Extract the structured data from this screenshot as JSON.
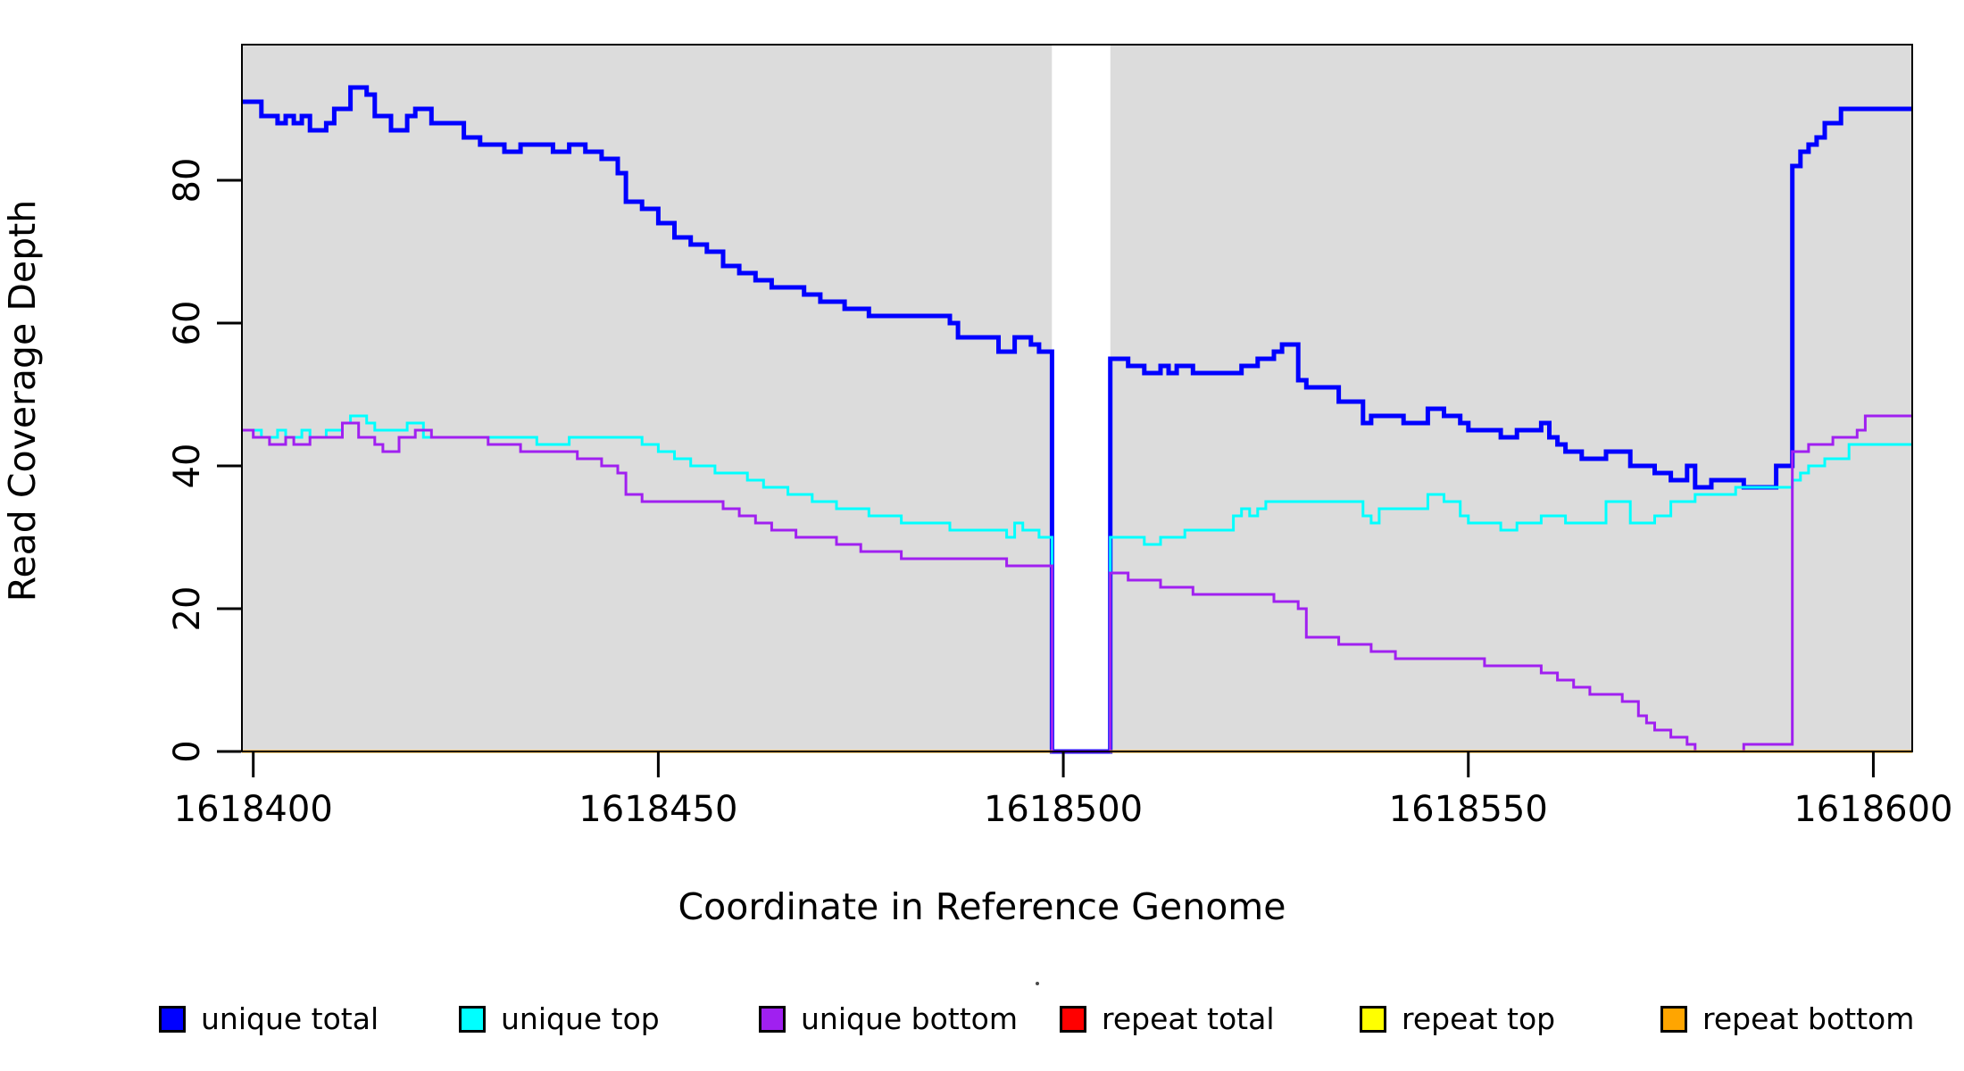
{
  "chart_data": {
    "type": "line",
    "subtype": "step-post-coverage-plot",
    "title": "",
    "xlabel": "Coordinate in Reference Genome",
    "ylabel": "Read Coverage Depth",
    "x_ticks": [
      1618400,
      1618450,
      1618500,
      1618550,
      1618600
    ],
    "y_ticks": [
      0,
      20,
      40,
      60,
      80
    ],
    "xlim": [
      1618398.6,
      1618604.8
    ],
    "ylim": [
      0,
      99
    ],
    "grid": "off",
    "panel_background": "#DCDCDC",
    "gap_region": {
      "x_start": 1618498.6,
      "x_end": 1618505.8,
      "fill": "#FFFFFF"
    },
    "legend_position": "bottom",
    "series": [
      {
        "name": "unique total",
        "color": "#0000FF",
        "line_width": 5,
        "points": [
          [
            1618398.6,
            91
          ],
          [
            1618401,
            89
          ],
          [
            1618403,
            88
          ],
          [
            1618404,
            89
          ],
          [
            1618405,
            88
          ],
          [
            1618406,
            89
          ],
          [
            1618407,
            87
          ],
          [
            1618409,
            88
          ],
          [
            1618410,
            90
          ],
          [
            1618412,
            93
          ],
          [
            1618414,
            92
          ],
          [
            1618415,
            89
          ],
          [
            1618417,
            87
          ],
          [
            1618419,
            89
          ],
          [
            1618420,
            90
          ],
          [
            1618422,
            88
          ],
          [
            1618426,
            86
          ],
          [
            1618428,
            85
          ],
          [
            1618431,
            84
          ],
          [
            1618433,
            85
          ],
          [
            1618437,
            84
          ],
          [
            1618439,
            85
          ],
          [
            1618441,
            84
          ],
          [
            1618443,
            83
          ],
          [
            1618445,
            81
          ],
          [
            1618446,
            77
          ],
          [
            1618448,
            76
          ],
          [
            1618450,
            74
          ],
          [
            1618452,
            72
          ],
          [
            1618454,
            71
          ],
          [
            1618456,
            70
          ],
          [
            1618458,
            68
          ],
          [
            1618460,
            67
          ],
          [
            1618462,
            66
          ],
          [
            1618464,
            65
          ],
          [
            1618468,
            64
          ],
          [
            1618470,
            63
          ],
          [
            1618473,
            62
          ],
          [
            1618476,
            61
          ],
          [
            1618486,
            60
          ],
          [
            1618487,
            58
          ],
          [
            1618492,
            56
          ],
          [
            1618494,
            58
          ],
          [
            1618496,
            57
          ],
          [
            1618497,
            56
          ],
          [
            1618498.6,
            0
          ],
          [
            1618505.8,
            55
          ],
          [
            1618508,
            54
          ],
          [
            1618510,
            53
          ],
          [
            1618512,
            54
          ],
          [
            1618513,
            53
          ],
          [
            1618514,
            54
          ],
          [
            1618516,
            53
          ],
          [
            1618522,
            54
          ],
          [
            1618524,
            55
          ],
          [
            1618526,
            56
          ],
          [
            1618527,
            57
          ],
          [
            1618529,
            52
          ],
          [
            1618530,
            51
          ],
          [
            1618534,
            49
          ],
          [
            1618537,
            46
          ],
          [
            1618538,
            47
          ],
          [
            1618542,
            46
          ],
          [
            1618545,
            48
          ],
          [
            1618547,
            47
          ],
          [
            1618549,
            46
          ],
          [
            1618550,
            45
          ],
          [
            1618554,
            44
          ],
          [
            1618556,
            45
          ],
          [
            1618559,
            46
          ],
          [
            1618560,
            44
          ],
          [
            1618561,
            43
          ],
          [
            1618562,
            42
          ],
          [
            1618564,
            41
          ],
          [
            1618567,
            42
          ],
          [
            1618570,
            40
          ],
          [
            1618573,
            39
          ],
          [
            1618575,
            38
          ],
          [
            1618577,
            40
          ],
          [
            1618578,
            37
          ],
          [
            1618580,
            38
          ],
          [
            1618584,
            37
          ],
          [
            1618588,
            40
          ],
          [
            1618590,
            82
          ],
          [
            1618591,
            84
          ],
          [
            1618592,
            85
          ],
          [
            1618593,
            86
          ],
          [
            1618594,
            88
          ],
          [
            1618596,
            90
          ],
          [
            1618604.8,
            90
          ]
        ]
      },
      {
        "name": "unique top",
        "color": "#00FFFF",
        "line_width": 3,
        "points": [
          [
            1618398.6,
            45
          ],
          [
            1618401,
            44
          ],
          [
            1618403,
            45
          ],
          [
            1618404,
            44
          ],
          [
            1618406,
            45
          ],
          [
            1618407,
            44
          ],
          [
            1618409,
            45
          ],
          [
            1618411,
            46
          ],
          [
            1618412,
            47
          ],
          [
            1618414,
            46
          ],
          [
            1618415,
            45
          ],
          [
            1618419,
            46
          ],
          [
            1618421,
            44
          ],
          [
            1618435,
            43
          ],
          [
            1618439,
            44
          ],
          [
            1618448,
            43
          ],
          [
            1618450,
            42
          ],
          [
            1618452,
            41
          ],
          [
            1618454,
            40
          ],
          [
            1618457,
            39
          ],
          [
            1618461,
            38
          ],
          [
            1618463,
            37
          ],
          [
            1618466,
            36
          ],
          [
            1618469,
            35
          ],
          [
            1618472,
            34
          ],
          [
            1618476,
            33
          ],
          [
            1618480,
            32
          ],
          [
            1618486,
            31
          ],
          [
            1618493,
            30
          ],
          [
            1618494,
            32
          ],
          [
            1618495,
            31
          ],
          [
            1618497,
            30
          ],
          [
            1618498.6,
            0
          ],
          [
            1618505.8,
            30
          ],
          [
            1618510,
            29
          ],
          [
            1618512,
            30
          ],
          [
            1618515,
            31
          ],
          [
            1618521,
            33
          ],
          [
            1618522,
            34
          ],
          [
            1618523,
            33
          ],
          [
            1618524,
            34
          ],
          [
            1618525,
            35
          ],
          [
            1618537,
            33
          ],
          [
            1618538,
            32
          ],
          [
            1618539,
            34
          ],
          [
            1618545,
            36
          ],
          [
            1618547,
            35
          ],
          [
            1618549,
            33
          ],
          [
            1618550,
            32
          ],
          [
            1618554,
            31
          ],
          [
            1618556,
            32
          ],
          [
            1618559,
            33
          ],
          [
            1618562,
            32
          ],
          [
            1618567,
            35
          ],
          [
            1618570,
            32
          ],
          [
            1618573,
            33
          ],
          [
            1618575,
            35
          ],
          [
            1618578,
            36
          ],
          [
            1618583,
            37
          ],
          [
            1618590,
            38
          ],
          [
            1618591,
            39
          ],
          [
            1618592,
            40
          ],
          [
            1618594,
            41
          ],
          [
            1618597,
            43
          ],
          [
            1618604.8,
            43
          ]
        ]
      },
      {
        "name": "unique bottom",
        "color": "#A020F0",
        "line_width": 3,
        "points": [
          [
            1618398.6,
            45
          ],
          [
            1618400,
            44
          ],
          [
            1618402,
            43
          ],
          [
            1618404,
            44
          ],
          [
            1618405,
            43
          ],
          [
            1618407,
            44
          ],
          [
            1618411,
            46
          ],
          [
            1618413,
            44
          ],
          [
            1618415,
            43
          ],
          [
            1618416,
            42
          ],
          [
            1618418,
            44
          ],
          [
            1618420,
            45
          ],
          [
            1618422,
            44
          ],
          [
            1618429,
            43
          ],
          [
            1618433,
            42
          ],
          [
            1618440,
            41
          ],
          [
            1618443,
            40
          ],
          [
            1618445,
            39
          ],
          [
            1618446,
            36
          ],
          [
            1618448,
            35
          ],
          [
            1618458,
            34
          ],
          [
            1618460,
            33
          ],
          [
            1618462,
            32
          ],
          [
            1618464,
            31
          ],
          [
            1618467,
            30
          ],
          [
            1618472,
            29
          ],
          [
            1618475,
            28
          ],
          [
            1618480,
            27
          ],
          [
            1618493,
            26
          ],
          [
            1618498.6,
            0
          ],
          [
            1618505.8,
            25
          ],
          [
            1618508,
            24
          ],
          [
            1618512,
            23
          ],
          [
            1618516,
            22
          ],
          [
            1618526,
            21
          ],
          [
            1618529,
            20
          ],
          [
            1618530,
            16
          ],
          [
            1618534,
            15
          ],
          [
            1618538,
            14
          ],
          [
            1618541,
            13
          ],
          [
            1618552,
            12
          ],
          [
            1618559,
            11
          ],
          [
            1618561,
            10
          ],
          [
            1618563,
            9
          ],
          [
            1618565,
            8
          ],
          [
            1618569,
            7
          ],
          [
            1618571,
            5
          ],
          [
            1618572,
            4
          ],
          [
            1618573,
            3
          ],
          [
            1618575,
            2
          ],
          [
            1618577,
            1
          ],
          [
            1618578,
            0
          ],
          [
            1618584,
            1
          ],
          [
            1618590,
            42
          ],
          [
            1618592,
            43
          ],
          [
            1618595,
            44
          ],
          [
            1618598,
            45
          ],
          [
            1618599,
            47
          ],
          [
            1618604.8,
            47
          ]
        ]
      },
      {
        "name": "repeat total",
        "color": "#FF0000",
        "line_width": 3,
        "segments": [
          [
            [
              1618398.6,
              0
            ],
            [
              1618498.6,
              0
            ]
          ],
          [
            [
              1618505.8,
              0
            ],
            [
              1618604.8,
              0
            ]
          ]
        ]
      },
      {
        "name": "repeat top",
        "color": "#FFFF00",
        "line_width": 3,
        "segments": [
          [
            [
              1618398.6,
              0
            ],
            [
              1618498.6,
              0
            ]
          ],
          [
            [
              1618505.8,
              0
            ],
            [
              1618604.8,
              0
            ]
          ]
        ]
      },
      {
        "name": "repeat bottom",
        "color": "#FFA500",
        "line_width": 3,
        "segments": [
          [
            [
              1618398.6,
              0
            ],
            [
              1618498.6,
              0
            ]
          ],
          [
            [
              1618505.8,
              0
            ],
            [
              1618604.8,
              0
            ]
          ]
        ]
      }
    ]
  },
  "axis_titles": {
    "x": "Coordinate in Reference Genome",
    "y": "Read Coverage Depth"
  },
  "legend": {
    "items": [
      {
        "label": "unique total",
        "color": "#0000FF"
      },
      {
        "label": "unique top",
        "color": "#00FFFF"
      },
      {
        "label": "unique bottom",
        "color": "#A020F0"
      },
      {
        "label": "repeat total",
        "color": "#FF0000"
      },
      {
        "label": "repeat top",
        "color": "#FFFF00"
      },
      {
        "label": "repeat bottom",
        "color": "#FFA500"
      }
    ]
  }
}
